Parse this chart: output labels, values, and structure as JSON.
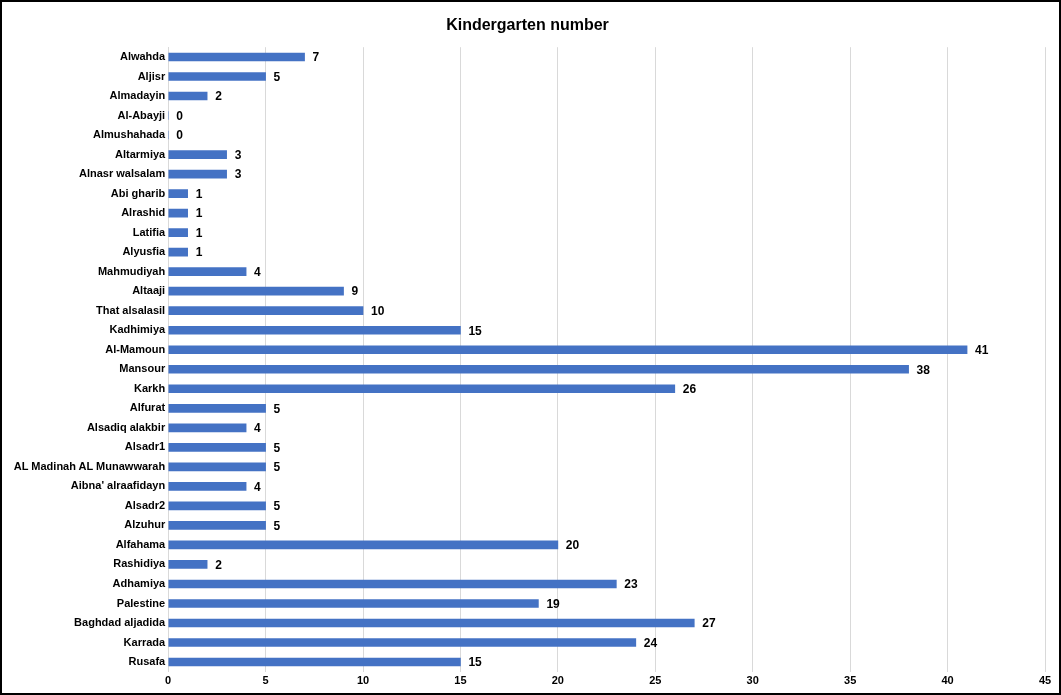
{
  "chart_data": {
    "type": "bar",
    "title": "Kindergarten number",
    "orientation": "horizontal",
    "categories": [
      "Alwahda",
      "Aljisr",
      "Almadayin",
      "Al-Abayji",
      "Almushahada",
      "Altarmiya",
      "Alnasr walsalam",
      "Abi gharib",
      "Alrashid",
      "Latifia",
      "Alyusfia",
      "Mahmudiyah",
      "Altaaji",
      "That alsalasil",
      "Kadhimiya",
      "Al-Mamoun",
      "Mansour",
      "Karkh",
      "Alfurat",
      "Alsadiq alakbir",
      "Alsadr1",
      "AL Madinah AL Munawwarah",
      "Aibna' alraafidayn",
      "Alsadr2",
      "Alzuhur",
      "Alfahama",
      "Rashidiya",
      "Adhamiya",
      "Palestine",
      "Baghdad aljadida",
      "Karrada",
      "Rusafa"
    ],
    "values": [
      7,
      5,
      2,
      0,
      0,
      3,
      3,
      1,
      1,
      1,
      1,
      4,
      9,
      10,
      15,
      41,
      38,
      26,
      5,
      4,
      5,
      5,
      4,
      5,
      5,
      20,
      2,
      23,
      19,
      27,
      24,
      15
    ],
    "color": "#4472c4",
    "xlim": [
      0,
      45
    ],
    "xticks": [
      0,
      5,
      10,
      15,
      20,
      25,
      30,
      35,
      40,
      45
    ],
    "grid": "x",
    "data_labels": true,
    "legend": false
  }
}
